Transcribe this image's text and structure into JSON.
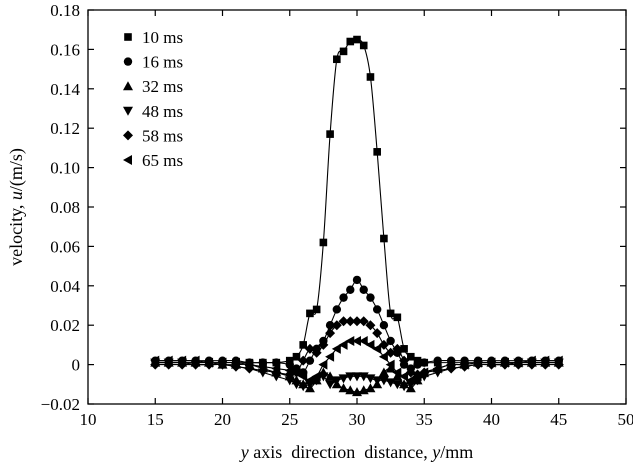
{
  "chart_data": {
    "type": "line",
    "title": "",
    "xlabel": "y axis direction distance, y/mm",
    "xlabel_parts": {
      "var1": "y",
      "mid": " axis  direction  distance, ",
      "var2": "y",
      "unit": "/mm"
    },
    "ylabel": "velocity, u/(m/s)",
    "ylabel_parts": {
      "prefix": "velocity, ",
      "var": "u",
      "unit": "/(m/s)"
    },
    "xlim": [
      10,
      50
    ],
    "ylim": [
      -0.02,
      0.18
    ],
    "x_ticks": [
      10,
      15,
      20,
      25,
      30,
      35,
      40,
      45,
      50
    ],
    "x_tick_labels": [
      "10",
      "15",
      "20",
      "25",
      "30",
      "35",
      "40",
      "45",
      "50"
    ],
    "y_ticks": [
      -0.02,
      0,
      0.02,
      0.04,
      0.06,
      0.08,
      0.1,
      0.12,
      0.14,
      0.16,
      0.18
    ],
    "y_tick_labels": [
      "−0.02",
      "0",
      "0.02",
      "0.04",
      "0.06",
      "0.08",
      "0.10",
      "0.12",
      "0.14",
      "0.16",
      "0.18"
    ],
    "grid": false,
    "legend_position": "top-left",
    "series": [
      {
        "name": "10 ms",
        "marker": "square",
        "x": [
          15,
          16,
          17,
          18,
          19,
          20,
          21,
          22,
          23,
          24,
          25,
          25.5,
          26,
          26.5,
          27,
          27.5,
          28,
          28.5,
          29,
          29.5,
          30,
          30.5,
          31,
          31.5,
          32,
          32.5,
          33,
          33.5,
          34,
          34.5,
          35,
          36,
          37,
          38,
          39,
          40,
          41,
          42,
          43,
          44,
          45
        ],
        "y": [
          0.001,
          0.001,
          0.001,
          0.001,
          0.001,
          0.001,
          0.001,
          0.001,
          0.001,
          0.001,
          0.002,
          0.004,
          0.01,
          0.026,
          0.028,
          0.062,
          0.117,
          0.155,
          0.159,
          0.164,
          0.165,
          0.162,
          0.146,
          0.108,
          0.064,
          0.026,
          0.024,
          0.008,
          0.004,
          0.002,
          0.001,
          0.001,
          0.001,
          0.001,
          0.001,
          0.001,
          0.001,
          0.001,
          0.001,
          0.001,
          0.001
        ]
      },
      {
        "name": "16 ms",
        "marker": "circle",
        "x": [
          15,
          16,
          17,
          18,
          19,
          20,
          21,
          22,
          23,
          24,
          25,
          25.5,
          26,
          26.5,
          27,
          27.5,
          28,
          28.5,
          29,
          29.5,
          30,
          30.5,
          31,
          31.5,
          32,
          32.5,
          33,
          33.5,
          34,
          34.5,
          35,
          36,
          37,
          38,
          39,
          40,
          41,
          42,
          43,
          44,
          45
        ],
        "y": [
          0.002,
          0.002,
          0.002,
          0.002,
          0.002,
          0.002,
          0.002,
          0.001,
          0.001,
          0.001,
          0.0,
          -0.002,
          -0.004,
          0.002,
          0.008,
          0.012,
          0.02,
          0.028,
          0.034,
          0.038,
          0.043,
          0.038,
          0.034,
          0.028,
          0.02,
          0.012,
          0.006,
          0.0,
          -0.002,
          0.0,
          0.001,
          0.002,
          0.002,
          0.002,
          0.002,
          0.002,
          0.002,
          0.002,
          0.002,
          0.002,
          0.002
        ]
      },
      {
        "name": "32 ms",
        "marker": "triangle-up",
        "x": [
          15,
          16,
          17,
          18,
          19,
          20,
          21,
          22,
          23,
          24,
          25,
          25.5,
          26,
          26.5,
          27,
          27.5,
          28,
          28.5,
          29,
          29.5,
          30,
          30.5,
          31,
          31.5,
          32,
          32.5,
          33,
          33.5,
          34,
          34.5,
          35,
          36,
          37,
          38,
          39,
          40,
          41,
          42,
          43,
          44,
          45
        ],
        "y": [
          0.001,
          0.001,
          0.001,
          0.001,
          0.001,
          0.0,
          0.0,
          0.0,
          -0.002,
          -0.004,
          -0.006,
          -0.008,
          -0.01,
          -0.012,
          -0.008,
          -0.004,
          -0.006,
          -0.01,
          -0.012,
          -0.013,
          -0.014,
          -0.013,
          -0.012,
          -0.01,
          -0.004,
          -0.002,
          -0.006,
          -0.01,
          -0.012,
          -0.008,
          -0.004,
          -0.002,
          0.0,
          0.0,
          0.001,
          0.001,
          0.001,
          0.001,
          0.001,
          0.001,
          0.001
        ]
      },
      {
        "name": "48 ms",
        "marker": "triangle-down",
        "x": [
          15,
          16,
          17,
          18,
          19,
          20,
          21,
          22,
          23,
          24,
          25,
          25.5,
          26,
          26.5,
          27,
          27.5,
          28,
          28.5,
          29,
          29.5,
          30,
          30.5,
          31,
          31.5,
          32,
          32.5,
          33,
          33.5,
          34,
          34.5,
          35,
          36,
          37,
          38,
          39,
          40,
          41,
          42,
          43,
          44,
          45
        ],
        "y": [
          0.001,
          0.001,
          0.001,
          0.0,
          0.0,
          0.0,
          -0.001,
          -0.002,
          -0.004,
          -0.006,
          -0.008,
          -0.01,
          -0.011,
          -0.01,
          -0.008,
          -0.006,
          -0.01,
          -0.008,
          -0.007,
          -0.006,
          -0.006,
          -0.006,
          -0.007,
          -0.008,
          -0.008,
          -0.009,
          -0.01,
          -0.011,
          -0.01,
          -0.008,
          -0.006,
          -0.004,
          -0.002,
          -0.001,
          0.0,
          0.0,
          0.0,
          0.001,
          0.001,
          0.001,
          0.001
        ]
      },
      {
        "name": "58 ms",
        "marker": "diamond",
        "x": [
          15,
          16,
          17,
          18,
          19,
          20,
          21,
          22,
          23,
          24,
          25,
          25.5,
          26,
          26.5,
          27,
          27.5,
          28,
          28.5,
          29,
          29.5,
          30,
          30.5,
          31,
          31.5,
          32,
          32.5,
          33,
          33.5,
          34,
          34.5,
          35,
          36,
          37,
          38,
          39,
          40,
          41,
          42,
          43,
          44,
          45
        ],
        "y": [
          0.0,
          0.0,
          0.0,
          0.0,
          0.0,
          0.0,
          -0.001,
          -0.002,
          -0.003,
          -0.004,
          -0.005,
          -0.004,
          0.002,
          0.008,
          0.006,
          0.01,
          0.016,
          0.02,
          0.022,
          0.022,
          0.022,
          0.022,
          0.02,
          0.016,
          0.01,
          0.006,
          0.008,
          0.002,
          -0.004,
          -0.005,
          -0.004,
          -0.003,
          -0.002,
          -0.001,
          0.0,
          0.0,
          0.0,
          0.0,
          0.0,
          0.0,
          0.0
        ]
      },
      {
        "name": "65 ms",
        "marker": "triangle-left",
        "x": [
          15,
          16,
          17,
          18,
          19,
          20,
          21,
          22,
          23,
          24,
          25,
          25.5,
          26,
          26.5,
          27,
          27.5,
          28,
          28.5,
          29,
          29.5,
          30,
          30.5,
          31,
          31.5,
          32,
          32.5,
          33,
          33.5,
          34,
          34.5,
          35,
          36,
          37,
          38,
          39,
          40,
          41,
          42,
          43,
          44,
          45
        ],
        "y": [
          0.002,
          0.002,
          0.002,
          0.002,
          0.001,
          0.001,
          0.001,
          0.0,
          -0.001,
          -0.002,
          -0.003,
          -0.004,
          -0.006,
          -0.008,
          -0.006,
          0.0,
          0.004,
          0.008,
          0.01,
          0.012,
          0.012,
          0.012,
          0.01,
          0.008,
          0.004,
          0.0,
          -0.004,
          -0.006,
          -0.008,
          -0.006,
          -0.004,
          -0.002,
          0.0,
          0.0,
          0.001,
          0.001,
          0.001,
          0.001,
          0.002,
          0.002,
          0.002
        ]
      }
    ]
  }
}
